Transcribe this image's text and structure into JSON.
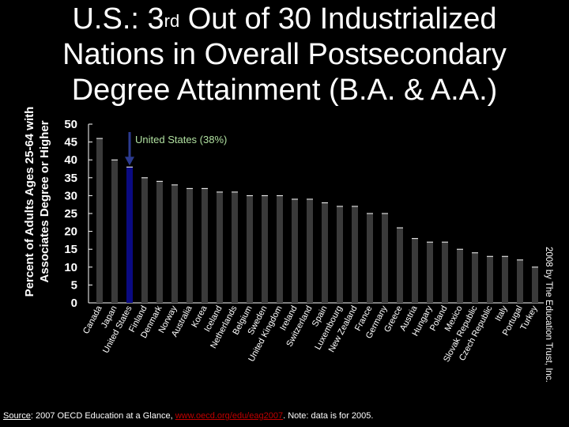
{
  "title": {
    "pre": "U.S.: 3",
    "sup": "rd",
    "post": " Out of 30 Industrialized Nations in Overall Postsecondary Degree Attainment (B.A. & A.A.)"
  },
  "credit": "2008 by The Education Trust, Inc.",
  "source": {
    "label": "Source",
    "text": ":  2007 OECD Education at a Glance, ",
    "link": "www.oecd.org/edu/eag2007",
    "note": ".  Note: data is for 2005."
  },
  "colors": {
    "bar": "#3a3a3a",
    "highlight": "#0a0a82",
    "arrow": "#2b3a8f",
    "annotation": "#b0e0a0",
    "text": "#ffffff"
  },
  "chart_data": {
    "type": "bar",
    "title": "U.S.: 3rd Out of 30 Industrialized Nations in Overall Postsecondary Degree Attainment (B.A. & A.A.)",
    "xlabel": "",
    "ylabel": "Percent of Adults Ages 25-64 with Associates Degree or Higher",
    "ylim": [
      0,
      50
    ],
    "yticks": [
      0,
      5,
      10,
      15,
      20,
      25,
      30,
      35,
      40,
      45,
      50
    ],
    "categories": [
      "Canada",
      "Japan",
      "United States",
      "Finland",
      "Denmark",
      "Norway",
      "Australia",
      "Korea",
      "Iceland",
      "Netherlands",
      "Belgium",
      "Sweden",
      "United Kingdom",
      "Ireland",
      "Switzerland",
      "Spain",
      "Luxembourg",
      "New Zealand",
      "France",
      "Germany",
      "Greece",
      "Austria",
      "Hungary",
      "Poland",
      "Mexico",
      "Slovak Republic",
      "Czech Republic",
      "Italy",
      "Portugal",
      "Turkey"
    ],
    "values": [
      46,
      40,
      38,
      35,
      34,
      33,
      32,
      32,
      31,
      31,
      30,
      30,
      30,
      29,
      29,
      28,
      27,
      27,
      25,
      25,
      21,
      18,
      17,
      17,
      15,
      14,
      13,
      13,
      12,
      10
    ],
    "highlight_index": 2,
    "annotation": "United States (38%)"
  }
}
